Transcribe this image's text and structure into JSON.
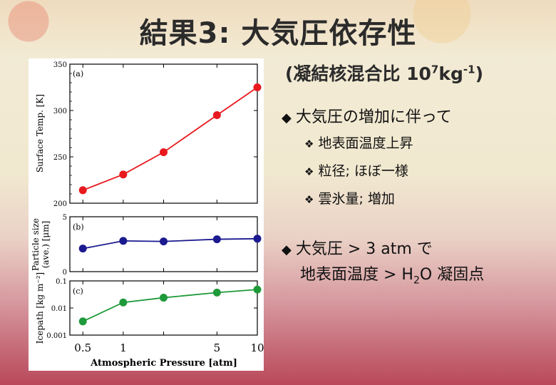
{
  "slide": {
    "title": "結果3: 大気圧依存性",
    "subtitle_prefix": "(凝結核混合比 10",
    "subtitle_exp1": "7",
    "subtitle_unit": "kg",
    "subtitle_exp2": "-1",
    "subtitle_suffix": ")"
  },
  "bullets": {
    "main1": "大気圧の増加に伴って",
    "subs": [
      "地表面温度上昇",
      "粒径; ほぼ一様",
      "雲氷量; 増加"
    ],
    "main2_line1": "大気圧 > 3 atm で",
    "main2_line2_pre": "地表面温度 > H",
    "main2_line2_sub": "2",
    "main2_line2_post": "O 凝固点"
  },
  "chart_data": [
    {
      "type": "line",
      "panel": "(a)",
      "x": [
        0.5,
        1,
        2,
        5,
        10
      ],
      "xscale": "log",
      "series": [
        {
          "values": [
            214,
            231,
            255,
            295,
            325
          ],
          "color": "#e8191f"
        }
      ],
      "ylabel": "Surface Temp. [K]",
      "ylim": [
        200,
        350
      ],
      "yticks": [
        "200",
        "250",
        "300",
        "350"
      ]
    },
    {
      "type": "line",
      "panel": "(b)",
      "x": [
        0.5,
        1,
        2,
        5,
        10
      ],
      "xscale": "log",
      "series": [
        {
          "values": [
            2.1,
            2.8,
            2.75,
            2.95,
            3.0
          ],
          "color": "#1c1a8f"
        }
      ],
      "ylabel_line1": "Particle size",
      "ylabel_line2": "(ave.) [μm]",
      "ylim": [
        0,
        5
      ],
      "yticks": [
        "0",
        "5"
      ]
    },
    {
      "type": "line",
      "panel": "(c)",
      "x": [
        0.5,
        1,
        2,
        5,
        10
      ],
      "xscale": "log",
      "yscale": "log",
      "series": [
        {
          "values": [
            0.0032,
            0.016,
            0.024,
            0.037,
            0.048
          ],
          "color": "#1f9a3a"
        }
      ],
      "ylabel": "Icepath [kg m⁻²]",
      "ylim": [
        0.001,
        0.1
      ],
      "yticks": [
        "0.001",
        "0.01",
        "0.1"
      ],
      "xticks": [
        "0.5",
        "1",
        "5",
        "10"
      ],
      "xlabel": "Atmospheric Pressure [atm]"
    }
  ]
}
